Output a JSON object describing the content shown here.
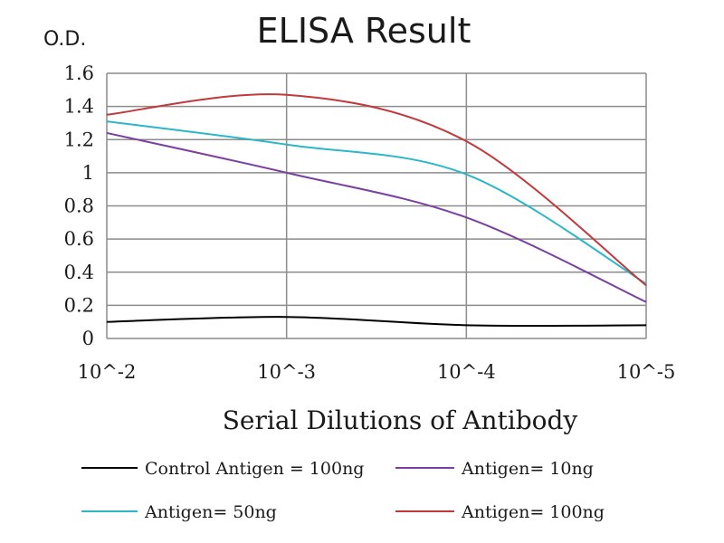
{
  "chart_data": {
    "type": "line",
    "title": "ELISA Result",
    "ylabel": "O.D.",
    "xlabel": "Serial Dilutions  of Antibody",
    "categories": [
      "10^-2",
      "10^-3",
      "10^-4",
      "10^-5"
    ],
    "ylim": [
      0,
      1.6
    ],
    "yticks": [
      "0",
      "0.2",
      "0.4",
      "0.6",
      "0.8",
      "1",
      "1.2",
      "1.4",
      "1.6"
    ],
    "grid": true,
    "legend_position": "bottom",
    "series": [
      {
        "name": "Control Antigen = 100ng",
        "color": "#000000",
        "values": [
          0.1,
          0.13,
          0.08,
          0.08
        ]
      },
      {
        "name": "Antigen= 10ng",
        "color": "#7a3fa0",
        "values": [
          1.24,
          1.0,
          0.73,
          0.22
        ]
      },
      {
        "name": "Antigen= 50ng",
        "color": "#2ab7c8",
        "values": [
          1.31,
          1.17,
          0.99,
          0.33
        ]
      },
      {
        "name": "Antigen= 100ng",
        "color": "#c0393b",
        "values": [
          1.35,
          1.47,
          1.19,
          0.32
        ]
      }
    ]
  }
}
